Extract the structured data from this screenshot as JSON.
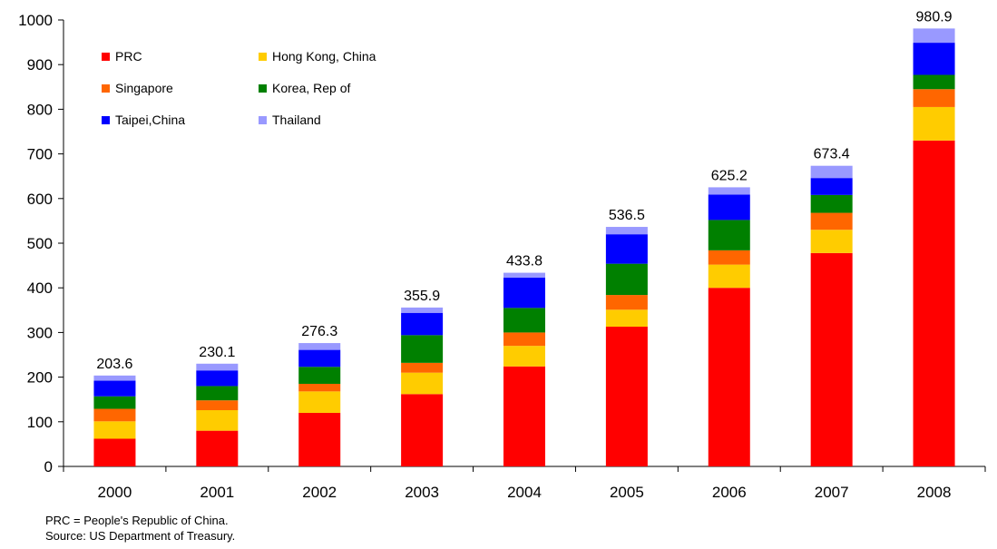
{
  "chart_data": {
    "type": "bar",
    "stacked": true,
    "categories": [
      "2000",
      "2001",
      "2002",
      "2003",
      "2004",
      "2005",
      "2006",
      "2007",
      "2008"
    ],
    "series": [
      {
        "name": "PRC",
        "color": "#ff0000",
        "values": [
          62,
          80,
          120,
          162,
          224,
          313,
          400,
          478,
          730
        ]
      },
      {
        "name": "Hong Kong, China",
        "color": "#ffcc00",
        "values": [
          39,
          46,
          48,
          48,
          46,
          38,
          52,
          52,
          75
        ]
      },
      {
        "name": "Singapore",
        "color": "#ff6600",
        "values": [
          28,
          22,
          17,
          22,
          30,
          33,
          32,
          38,
          40
        ]
      },
      {
        "name": "Korea, Rep of",
        "color": "#008000",
        "values": [
          28,
          32,
          38,
          62,
          55,
          70,
          68,
          40,
          32
        ]
      },
      {
        "name": "Taipei,China",
        "color": "#0000ff",
        "values": [
          35,
          35,
          38,
          50,
          68,
          66,
          57,
          38,
          72
        ]
      },
      {
        "name": "Thailand",
        "color": "#9999ff",
        "values": [
          11.6,
          15.1,
          15.3,
          11.9,
          10.8,
          16.5,
          16.2,
          27.4,
          31.9
        ]
      }
    ],
    "totals": [
      "203.6",
      "230.1",
      "276.3",
      "355.9",
      "433.8",
      "536.5",
      "625.2",
      "673.4",
      "980.9"
    ],
    "ylim": [
      0,
      1000
    ],
    "yticks": [
      0,
      100,
      200,
      300,
      400,
      500,
      600,
      700,
      800,
      900,
      1000
    ],
    "title": "",
    "xlabel": "",
    "ylabel": "",
    "grid": false,
    "legend_position": "top-left, inside plot, 2 columns"
  },
  "notes": {
    "line1": "PRC = People's Republic of China.",
    "line2": "Source: US Department of Treasury."
  }
}
